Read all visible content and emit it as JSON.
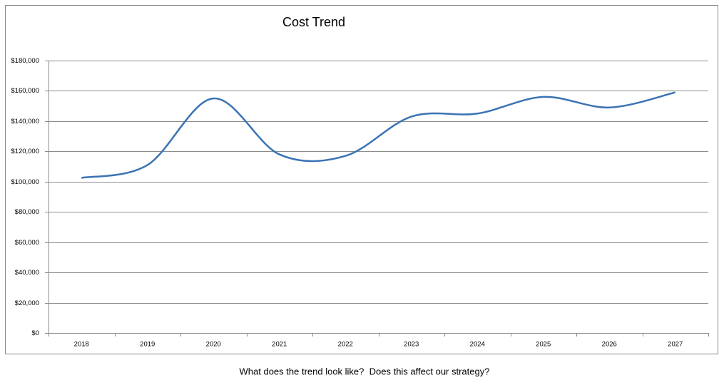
{
  "chart_data": {
    "type": "line",
    "title": "Cost Trend",
    "categories": [
      "2018",
      "2019",
      "2020",
      "2021",
      "2022",
      "2023",
      "2024",
      "2025",
      "2026",
      "2027"
    ],
    "series": [
      {
        "name": "Cost",
        "color": "#3a73b4",
        "values": [
          102500,
          111000,
          155000,
          118000,
          117000,
          143000,
          145000,
          156000,
          149000,
          159000
        ]
      }
    ],
    "ylim": [
      0,
      180000
    ],
    "yticks": [
      {
        "value": 0,
        "label": "$0"
      },
      {
        "value": 20000,
        "label": "$20,000"
      },
      {
        "value": 40000,
        "label": "$40,000"
      },
      {
        "value": 60000,
        "label": "$60,000"
      },
      {
        "value": 80000,
        "label": "$80,000"
      },
      {
        "value": 100000,
        "label": "$100,000"
      },
      {
        "value": 120000,
        "label": "$120,000"
      },
      {
        "value": 140000,
        "label": "$140,000"
      },
      {
        "value": 160000,
        "label": "$160,000"
      },
      {
        "value": 180000,
        "label": "$180,000"
      }
    ],
    "grid": true,
    "smooth": true
  },
  "caption": "What does the trend look like?  Does this affect our strategy?"
}
